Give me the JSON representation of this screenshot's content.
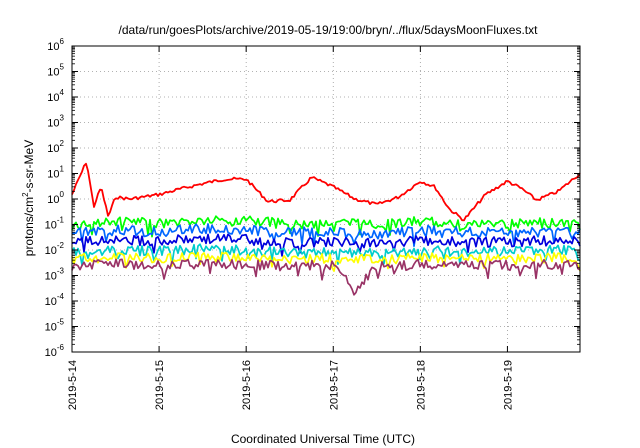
{
  "chart_data": {
    "type": "line",
    "title": "/data/run/goesPlots/archive/2019-05-19/19:00/bryn/../flux/5daysMoonFluxes.txt",
    "xlabel": "Coordinated Universal Time (UTC)",
    "ylabel": {
      "base": "protons/cm",
      "sup": "2",
      "rest": "-s-sr-MeV"
    },
    "yscale": "log",
    "ylim": [
      1e-06,
      1000000.0
    ],
    "xlim": [
      "2019-05-14",
      "2019-05-19 20:00"
    ],
    "grid": true,
    "x_ticks": [
      "2019-5-14",
      "2019-5-15",
      "2019-5-16",
      "2019-5-17",
      "2019-5-18",
      "2019-5-19"
    ],
    "y_ticks": [
      {
        "base": "10",
        "exp": "-6"
      },
      {
        "base": "10",
        "exp": "-5"
      },
      {
        "base": "10",
        "exp": "-4"
      },
      {
        "base": "10",
        "exp": "-3"
      },
      {
        "base": "10",
        "exp": "-2"
      },
      {
        "base": "10",
        "exp": "-1"
      },
      {
        "base": "10",
        "exp": "0"
      },
      {
        "base": "10",
        "exp": "1"
      },
      {
        "base": "10",
        "exp": "2"
      },
      {
        "base": "10",
        "exp": "3"
      },
      {
        "base": "10",
        "exp": "4"
      },
      {
        "base": "10",
        "exp": "5"
      },
      {
        "base": "10",
        "exp": "6"
      }
    ],
    "series": [
      {
        "color": "#ff0000",
        "x": [
          "2019-05-14 00:00",
          "2019-05-14 04:00",
          "2019-05-14 06:00",
          "2019-05-14 08:00",
          "2019-05-14 10:00",
          "2019-05-14 12:00",
          "2019-05-14 16:00",
          "2019-05-15 00:00",
          "2019-05-15 06:00",
          "2019-05-15 12:00",
          "2019-05-15 18:00",
          "2019-05-16 00:00",
          "2019-05-16 06:00",
          "2019-05-16 12:00",
          "2019-05-16 18:00",
          "2019-05-17 00:00",
          "2019-05-17 06:00",
          "2019-05-17 12:00",
          "2019-05-17 18:00",
          "2019-05-18 00:00",
          "2019-05-18 04:00",
          "2019-05-18 08:00",
          "2019-05-18 12:00",
          "2019-05-18 18:00",
          "2019-05-19 00:00",
          "2019-05-19 04:00",
          "2019-05-19 08:00",
          "2019-05-19 14:00",
          "2019-05-19 20:00"
        ],
        "y": [
          1.5,
          30,
          0.5,
          3,
          0.2,
          1.2,
          1,
          1.5,
          2.5,
          4,
          6,
          6,
          0.8,
          0.9,
          7,
          3,
          1,
          0.6,
          1.2,
          5,
          3,
          0.4,
          0.15,
          1.5,
          5,
          2.5,
          0.9,
          2,
          10
        ]
      },
      {
        "color": "#00ff00",
        "x": [
          "2019-05-14 00:00",
          "2019-05-14 12:00",
          "2019-05-15 00:00",
          "2019-05-15 12:00",
          "2019-05-16 00:00",
          "2019-05-16 12:00",
          "2019-05-17 00:00",
          "2019-05-17 12:00",
          "2019-05-18 00:00",
          "2019-05-18 12:00",
          "2019-05-19 00:00",
          "2019-05-19 12:00",
          "2019-05-19 20:00"
        ],
        "y": [
          0.09,
          0.13,
          0.11,
          0.14,
          0.15,
          0.1,
          0.12,
          0.1,
          0.13,
          0.1,
          0.11,
          0.12,
          0.12
        ]
      },
      {
        "color": "#0066ff",
        "x": [
          "2019-05-14 00:00",
          "2019-05-14 12:00",
          "2019-05-15 00:00",
          "2019-05-15 12:00",
          "2019-05-16 00:00",
          "2019-05-16 12:00",
          "2019-05-17 00:00",
          "2019-05-17 12:00",
          "2019-05-18 00:00",
          "2019-05-18 12:00",
          "2019-05-19 00:00",
          "2019-05-19 12:00",
          "2019-05-19 20:00"
        ],
        "y": [
          0.05,
          0.06,
          0.05,
          0.07,
          0.06,
          0.05,
          0.05,
          0.04,
          0.06,
          0.05,
          0.05,
          0.06,
          0.06
        ]
      },
      {
        "color": "#0000dd",
        "x": [
          "2019-05-14 00:00",
          "2019-05-14 12:00",
          "2019-05-15 00:00",
          "2019-05-15 12:00",
          "2019-05-16 00:00",
          "2019-05-16 12:00",
          "2019-05-17 00:00",
          "2019-05-17 12:00",
          "2019-05-18 00:00",
          "2019-05-18 12:00",
          "2019-05-19 00:00",
          "2019-05-19 12:00",
          "2019-05-19 20:00"
        ],
        "y": [
          0.02,
          0.025,
          0.022,
          0.028,
          0.026,
          0.02,
          0.021,
          0.018,
          0.024,
          0.02,
          0.021,
          0.023,
          0.022
        ]
      },
      {
        "color": "#00cccc",
        "x": [
          "2019-05-14 00:00",
          "2019-05-14 12:00",
          "2019-05-15 00:00",
          "2019-05-15 12:00",
          "2019-05-16 00:00",
          "2019-05-16 12:00",
          "2019-05-17 00:00",
          "2019-05-17 12:00",
          "2019-05-18 00:00",
          "2019-05-18 12:00",
          "2019-05-19 00:00",
          "2019-05-19 12:00",
          "2019-05-19 20:00"
        ],
        "y": [
          0.008,
          0.01,
          0.009,
          0.011,
          0.01,
          0.008,
          0.009,
          0.007,
          0.01,
          0.008,
          0.009,
          0.01,
          0.009
        ]
      },
      {
        "color": "#ffff00",
        "x": [
          "2019-05-14 00:00",
          "2019-05-14 12:00",
          "2019-05-15 00:00",
          "2019-05-15 12:00",
          "2019-05-16 00:00",
          "2019-05-16 12:00",
          "2019-05-17 00:00",
          "2019-05-17 12:00",
          "2019-05-18 00:00",
          "2019-05-18 12:00",
          "2019-05-19 00:00",
          "2019-05-19 12:00",
          "2019-05-19 20:00"
        ],
        "y": [
          0.0045,
          0.005,
          0.0045,
          0.0055,
          0.005,
          0.0045,
          0.0048,
          0.0042,
          0.005,
          0.0045,
          0.0047,
          0.005,
          0.0048
        ]
      },
      {
        "color": "#993366",
        "x": [
          "2019-05-14 00:00",
          "2019-05-14 12:00",
          "2019-05-15 00:00",
          "2019-05-15 12:00",
          "2019-05-16 00:00",
          "2019-05-16 12:00",
          "2019-05-17 00:00",
          "2019-05-17 06:00",
          "2019-05-17 12:00",
          "2019-05-18 00:00",
          "2019-05-18 12:00",
          "2019-05-19 00:00",
          "2019-05-19 12:00",
          "2019-05-19 20:00"
        ],
        "y": [
          0.0025,
          0.0028,
          0.0024,
          0.003,
          0.0027,
          0.0023,
          0.0026,
          0.0003,
          0.0022,
          0.0027,
          0.0024,
          0.0025,
          0.0027,
          0.0026
        ]
      }
    ]
  }
}
